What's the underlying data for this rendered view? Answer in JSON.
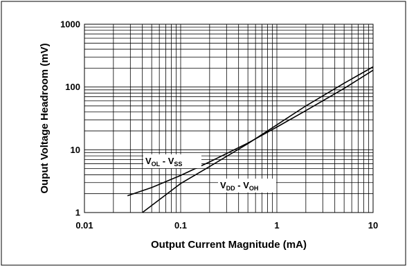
{
  "chart_data": {
    "type": "line",
    "title": "",
    "xlabel": "Output Current Magnitude (mA)",
    "ylabel": "Ouput Voltage Headroom (mV)",
    "x_scale": "log",
    "y_scale": "log",
    "xlim": [
      0.01,
      10
    ],
    "ylim": [
      1,
      1000
    ],
    "grid": true,
    "x_ticks": [
      {
        "value": 0.01,
        "label": "0.01"
      },
      {
        "value": 0.1,
        "label": "0.1"
      },
      {
        "value": 1,
        "label": "1"
      },
      {
        "value": 10,
        "label": "10"
      }
    ],
    "y_ticks": [
      {
        "value": 1,
        "label": "1"
      },
      {
        "value": 10,
        "label": "10"
      },
      {
        "value": 100,
        "label": "100"
      },
      {
        "value": 1000,
        "label": "1000"
      }
    ],
    "series": [
      {
        "label_main": "V",
        "label_sub1": "OL",
        "label_sep": " - V",
        "label_sub2": "SS",
        "x": [
          0.028,
          0.05,
          0.1,
          0.2,
          0.5,
          1,
          2,
          5,
          10
        ],
        "y": [
          1.85,
          2.5,
          3.9,
          6.4,
          12.8,
          23,
          42,
          95,
          185
        ]
      },
      {
        "label_main": "V",
        "label_sub1": "DD",
        "label_sep": " - V",
        "label_sub2": "OH",
        "x": [
          0.04,
          0.1,
          0.2,
          0.5,
          1,
          2,
          5,
          10
        ],
        "y": [
          1.0,
          2.9,
          5.4,
          12.5,
          25,
          50,
          115,
          210
        ]
      }
    ]
  }
}
